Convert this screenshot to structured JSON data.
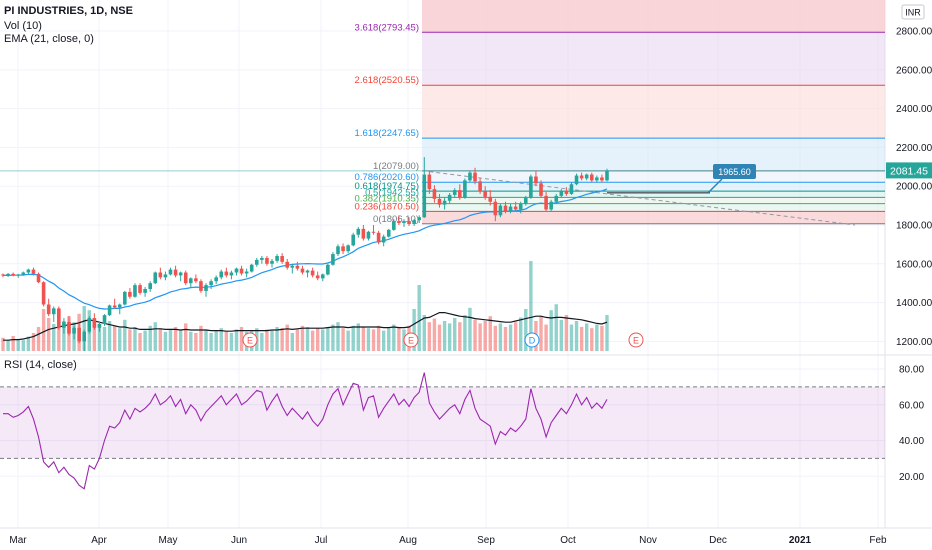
{
  "header": {
    "title": "PI INDUSTRIES, 1D, NSE",
    "volume_indicator": "Vol (10)",
    "ema_indicator": "EMA (21, close, 0)",
    "rsi_indicator": "RSI (14, close)",
    "currency": "INR",
    "last_price": "2081.45",
    "target_label": "1965.60"
  },
  "colors": {
    "up": "#26a69a",
    "down": "#ef5350",
    "ema": "#2196f3",
    "rsi": "#9c27b0",
    "last_price_bg": "#26a69a",
    "label_bg": "#2f83b5"
  },
  "chart_data": {
    "type": "candlestick",
    "price_axis": {
      "ticks": [
        "2800.00",
        "2600.00",
        "2400.00",
        "2200.00",
        "2000.00",
        "1800.00",
        "1600.00",
        "1400.00",
        "1200.00"
      ],
      "range": [
        1140,
        2960
      ]
    },
    "time_axis": {
      "ticks": [
        "Mar",
        "Apr",
        "May",
        "Jun",
        "Jul",
        "Aug",
        "Sep",
        "Oct",
        "Nov",
        "Dec",
        "2021",
        "Feb"
      ]
    },
    "fibonacci": {
      "low": 1806.1,
      "high": 2079.0,
      "levels": [
        {
          "ratio": 0,
          "price": 1806.1,
          "label": "0(1806.10)",
          "color": "#787b86"
        },
        {
          "ratio": 0.236,
          "price": 1870.5,
          "label": "0.236(1870.50)",
          "color": "#f44336"
        },
        {
          "ratio": 0.382,
          "price": 1910.35,
          "label": "0.382(1910.35)",
          "color": "#4caf50"
        },
        {
          "ratio": 0.5,
          "price": 1942.55,
          "label": "0.5(1942.55)",
          "color": "#26a69a"
        },
        {
          "ratio": 0.618,
          "price": 1974.75,
          "label": "0.618(1974.75)",
          "color": "#009688"
        },
        {
          "ratio": 0.786,
          "price": 2020.6,
          "label": "0.786(2020.60)",
          "color": "#2196f3"
        },
        {
          "ratio": 1,
          "price": 2079.0,
          "label": "1(2079.00)",
          "color": "#787b86"
        },
        {
          "ratio": 1.618,
          "price": 2247.65,
          "label": "1.618(2247.65)",
          "color": "#2196f3"
        },
        {
          "ratio": 2.618,
          "price": 2520.55,
          "label": "2.618(2520.55)",
          "color": "#f44336"
        },
        {
          "ratio": 3.618,
          "price": 2793.45,
          "label": "3.618(2793.45)",
          "color": "#9c27b0"
        }
      ]
    },
    "candles": [
      [
        1545,
        1550,
        1530,
        1540
      ],
      [
        1540,
        1552,
        1532,
        1548
      ],
      [
        1548,
        1555,
        1535,
        1540
      ],
      [
        1540,
        1548,
        1528,
        1545
      ],
      [
        1545,
        1560,
        1538,
        1555
      ],
      [
        1555,
        1575,
        1548,
        1570
      ],
      [
        1570,
        1580,
        1540,
        1548
      ],
      [
        1548,
        1555,
        1500,
        1505
      ],
      [
        1505,
        1510,
        1380,
        1390
      ],
      [
        1390,
        1420,
        1330,
        1340
      ],
      [
        1340,
        1380,
        1300,
        1370
      ],
      [
        1370,
        1380,
        1260,
        1270
      ],
      [
        1270,
        1320,
        1240,
        1300
      ],
      [
        1300,
        1330,
        1230,
        1240
      ],
      [
        1240,
        1280,
        1210,
        1270
      ],
      [
        1270,
        1290,
        1190,
        1200
      ],
      [
        1200,
        1260,
        1150,
        1250
      ],
      [
        1250,
        1330,
        1240,
        1320
      ],
      [
        1320,
        1345,
        1260,
        1270
      ],
      [
        1270,
        1300,
        1250,
        1290
      ],
      [
        1290,
        1340,
        1280,
        1335
      ],
      [
        1335,
        1390,
        1330,
        1385
      ],
      [
        1385,
        1420,
        1370,
        1375
      ],
      [
        1375,
        1395,
        1340,
        1390
      ],
      [
        1390,
        1460,
        1385,
        1455
      ],
      [
        1455,
        1475,
        1420,
        1430
      ],
      [
        1430,
        1500,
        1425,
        1490
      ],
      [
        1490,
        1500,
        1440,
        1450
      ],
      [
        1450,
        1480,
        1430,
        1470
      ],
      [
        1470,
        1510,
        1455,
        1500
      ],
      [
        1500,
        1560,
        1495,
        1555
      ],
      [
        1555,
        1580,
        1520,
        1530
      ],
      [
        1530,
        1560,
        1515,
        1545
      ],
      [
        1545,
        1580,
        1540,
        1570
      ],
      [
        1570,
        1590,
        1530,
        1540
      ],
      [
        1540,
        1560,
        1510,
        1555
      ],
      [
        1555,
        1565,
        1490,
        1500
      ],
      [
        1500,
        1530,
        1480,
        1525
      ],
      [
        1525,
        1545,
        1500,
        1510
      ],
      [
        1510,
        1520,
        1450,
        1460
      ],
      [
        1460,
        1500,
        1430,
        1490
      ],
      [
        1490,
        1520,
        1470,
        1510
      ],
      [
        1510,
        1540,
        1495,
        1530
      ],
      [
        1530,
        1570,
        1520,
        1560
      ],
      [
        1560,
        1580,
        1530,
        1540
      ],
      [
        1540,
        1565,
        1520,
        1555
      ],
      [
        1555,
        1580,
        1540,
        1575
      ],
      [
        1575,
        1590,
        1540,
        1550
      ],
      [
        1550,
        1575,
        1530,
        1560
      ],
      [
        1560,
        1600,
        1555,
        1595
      ],
      [
        1595,
        1630,
        1585,
        1620
      ],
      [
        1620,
        1640,
        1600,
        1630
      ],
      [
        1630,
        1640,
        1590,
        1600
      ],
      [
        1600,
        1625,
        1580,
        1615
      ],
      [
        1615,
        1650,
        1605,
        1640
      ],
      [
        1640,
        1655,
        1600,
        1610
      ],
      [
        1610,
        1625,
        1570,
        1580
      ],
      [
        1580,
        1600,
        1550,
        1590
      ],
      [
        1590,
        1610,
        1565,
        1575
      ],
      [
        1575,
        1590,
        1545,
        1555
      ],
      [
        1555,
        1570,
        1530,
        1565
      ],
      [
        1565,
        1580,
        1530,
        1540
      ],
      [
        1540,
        1560,
        1515,
        1525
      ],
      [
        1525,
        1550,
        1510,
        1545
      ],
      [
        1545,
        1600,
        1540,
        1595
      ],
      [
        1595,
        1660,
        1590,
        1650
      ],
      [
        1650,
        1700,
        1640,
        1690
      ],
      [
        1690,
        1705,
        1650,
        1665
      ],
      [
        1665,
        1700,
        1655,
        1695
      ],
      [
        1695,
        1760,
        1690,
        1750
      ],
      [
        1750,
        1790,
        1735,
        1780
      ],
      [
        1780,
        1800,
        1720,
        1730
      ],
      [
        1730,
        1770,
        1720,
        1765
      ],
      [
        1765,
        1800,
        1750,
        1760
      ],
      [
        1760,
        1770,
        1700,
        1710
      ],
      [
        1710,
        1750,
        1690,
        1740
      ],
      [
        1740,
        1780,
        1735,
        1775
      ],
      [
        1775,
        1830,
        1770,
        1820
      ],
      [
        1820,
        1850,
        1800,
        1810
      ],
      [
        1810,
        1830,
        1790,
        1820
      ],
      [
        1820,
        1840,
        1795,
        1805
      ],
      [
        1805,
        1830,
        1795,
        1825
      ],
      [
        1825,
        1850,
        1810,
        1840
      ],
      [
        1840,
        2150,
        1836,
        2060
      ],
      [
        2060,
        2080,
        1960,
        1985
      ],
      [
        1985,
        2005,
        1915,
        1935
      ],
      [
        1935,
        1960,
        1890,
        1905
      ],
      [
        1905,
        1940,
        1880,
        1925
      ],
      [
        1925,
        1965,
        1910,
        1955
      ],
      [
        1955,
        1990,
        1940,
        1980
      ],
      [
        1980,
        2010,
        1930,
        1940
      ],
      [
        1940,
        2040,
        1935,
        2030
      ],
      [
        2030,
        2080,
        2020,
        2070
      ],
      [
        2070,
        2095,
        2010,
        2025
      ],
      [
        2025,
        2040,
        1960,
        1975
      ],
      [
        1975,
        2000,
        1930,
        1945
      ],
      [
        1945,
        1980,
        1900,
        1920
      ],
      [
        1920,
        1935,
        1820,
        1850
      ],
      [
        1850,
        1910,
        1840,
        1900
      ],
      [
        1900,
        1920,
        1860,
        1870
      ],
      [
        1870,
        1910,
        1860,
        1895
      ],
      [
        1895,
        1920,
        1870,
        1880
      ],
      [
        1880,
        1920,
        1860,
        1910
      ],
      [
        1910,
        1950,
        1900,
        1940
      ],
      [
        1940,
        2060,
        1935,
        2050
      ],
      [
        2050,
        2080,
        2000,
        2015
      ],
      [
        2015,
        2030,
        1940,
        1950
      ],
      [
        1950,
        1970,
        1870,
        1880
      ],
      [
        1880,
        1930,
        1870,
        1920
      ],
      [
        1920,
        1960,
        1910,
        1950
      ],
      [
        1950,
        1985,
        1940,
        1975
      ],
      [
        1975,
        1995,
        1950,
        1960
      ],
      [
        1960,
        2020,
        1955,
        2010
      ],
      [
        2010,
        2065,
        2005,
        2055
      ],
      [
        2055,
        2070,
        2030,
        2040
      ],
      [
        2040,
        2065,
        2030,
        2060
      ],
      [
        2060,
        2070,
        2020,
        2030
      ],
      [
        2030,
        2055,
        2020,
        2045
      ],
      [
        2045,
        2060,
        2020,
        2030
      ],
      [
        2030,
        2090,
        2025,
        2081
      ]
    ],
    "volume": [
      22,
      18,
      25,
      20,
      18,
      24,
      30,
      40,
      70,
      55,
      45,
      60,
      50,
      58,
      48,
      62,
      75,
      68,
      55,
      45,
      40,
      50,
      42,
      38,
      52,
      36,
      40,
      30,
      34,
      42,
      48,
      38,
      32,
      36,
      40,
      34,
      46,
      32,
      30,
      42,
      36,
      30,
      34,
      38,
      32,
      30,
      36,
      40,
      32,
      34,
      38,
      30,
      36,
      34,
      40,
      38,
      44,
      30,
      36,
      42,
      40,
      34,
      38,
      36,
      40,
      44,
      48,
      38,
      34,
      42,
      46,
      40,
      38,
      36,
      42,
      34,
      38,
      44,
      40,
      36,
      42,
      70,
      110,
      60,
      48,
      54,
      44,
      50,
      46,
      55,
      48,
      60,
      72,
      52,
      46,
      50,
      58,
      42,
      46,
      40,
      44,
      48,
      56,
      70,
      150,
      50,
      58,
      44,
      68,
      78,
      52,
      60,
      44,
      50,
      40,
      46,
      38,
      44,
      42,
      60
    ],
    "volume_ma": [
      18,
      18,
      19,
      19,
      20,
      22,
      24,
      28,
      32,
      36,
      38,
      40,
      42,
      44,
      45,
      47,
      50,
      52,
      50,
      48,
      46,
      44,
      42,
      40,
      40,
      38,
      38,
      36,
      36,
      36,
      37,
      37,
      36,
      36,
      36,
      35,
      36,
      35,
      35,
      35,
      35,
      34,
      34,
      34,
      33,
      33,
      34,
      34,
      34,
      34,
      34,
      34,
      34,
      35,
      35,
      36,
      37,
      36,
      37,
      38,
      38,
      38,
      38,
      38,
      39,
      40,
      40,
      40,
      39,
      40,
      40,
      40,
      40,
      40,
      40,
      39,
      39,
      40,
      39,
      39,
      40,
      45,
      50,
      55,
      56,
      60,
      64,
      64,
      62,
      60,
      58,
      57,
      56,
      54,
      53,
      52,
      51,
      50,
      49,
      48,
      48,
      50,
      52,
      54,
      56,
      58,
      58,
      56,
      55,
      56,
      56,
      55,
      54,
      53,
      52,
      50,
      48,
      46,
      45,
      48
    ],
    "ema": [
      1540,
      1540,
      1541,
      1541,
      1542,
      1545,
      1546,
      1542,
      1527,
      1510,
      1497,
      1475,
      1459,
      1440,
      1427,
      1411,
      1397,
      1389,
      1378,
      1370,
      1367,
      1368,
      1370,
      1370,
      1377,
      1382,
      1391,
      1396,
      1402,
      1411,
      1425,
      1434,
      1443,
      1455,
      1461,
      1469,
      1472,
      1477,
      1480,
      1478,
      1479,
      1482,
      1487,
      1495,
      1500,
      1505,
      1512,
      1516,
      1522,
      1530,
      1542,
      1554,
      1562,
      1570,
      1581,
      1588,
      1592,
      1597,
      1599,
      1600,
      1601,
      1600,
      1599,
      1599,
      1604,
      1613,
      1626,
      1636,
      1648,
      1662,
      1680,
      1690,
      1700,
      1710,
      1714,
      1719,
      1726,
      1736,
      1745,
      1752,
      1757,
      1763,
      1770,
      1783,
      1793,
      1799,
      1803,
      1808,
      1815,
      1822,
      1827,
      1836,
      1849,
      1856,
      1862,
      1866,
      1868,
      1867,
      1870,
      1870,
      1873,
      1873,
      1877,
      1883,
      1898,
      1909,
      1913,
      1910,
      1911,
      1915,
      1921,
      1925,
      1931,
      1941,
      1949,
      1958,
      1964,
      1971,
      1976,
      1986
    ],
    "rsi": [
      55,
      55,
      53,
      54,
      56,
      59,
      52,
      42,
      28,
      25,
      28,
      22,
      25,
      21,
      19,
      15,
      13,
      26,
      24,
      30,
      40,
      48,
      47,
      50,
      57,
      52,
      58,
      56,
      58,
      61,
      66,
      60,
      62,
      65,
      59,
      63,
      55,
      60,
      57,
      51,
      56,
      59,
      62,
      65,
      60,
      63,
      66,
      60,
      62,
      65,
      68,
      67,
      57,
      62,
      66,
      59,
      54,
      58,
      55,
      52,
      56,
      51,
      48,
      52,
      60,
      66,
      69,
      60,
      66,
      72,
      71,
      57,
      64,
      65,
      53,
      58,
      62,
      66,
      60,
      63,
      59,
      64,
      67,
      78,
      61,
      56,
      52,
      55,
      58,
      60,
      55,
      63,
      68,
      58,
      52,
      50,
      48,
      38,
      45,
      43,
      47,
      45,
      48,
      52,
      69,
      58,
      52,
      42,
      50,
      54,
      58,
      55,
      60,
      66,
      60,
      64,
      58,
      61,
      58,
      63
    ],
    "target_price": 1965.6
  }
}
